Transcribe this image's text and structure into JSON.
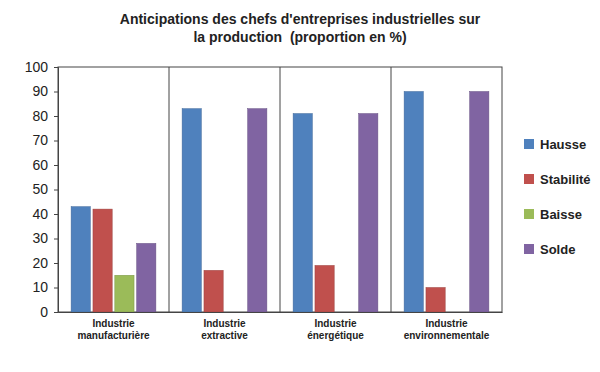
{
  "chart_data": {
    "type": "bar",
    "title": "Anticipations des chefs d'entreprises industrielles sur la production  (proportion en %)",
    "categories": [
      "Industrie manufacturière",
      "Industrie extractive",
      "Industrie énergétique",
      "Industrie environnementale"
    ],
    "series": [
      {
        "name": "Hausse",
        "color": "#4f81bd",
        "values": [
          43,
          83,
          81,
          90
        ]
      },
      {
        "name": "Stabilité",
        "color": "#c0504d",
        "values": [
          42,
          17,
          19,
          10
        ]
      },
      {
        "name": "Baisse",
        "color": "#9bbb59",
        "values": [
          15,
          0,
          0,
          0
        ]
      },
      {
        "name": "Solde",
        "color": "#8064a2",
        "values": [
          28,
          83,
          81,
          90
        ]
      }
    ],
    "ylim": [
      0,
      100
    ],
    "yticks": [
      0,
      10,
      20,
      30,
      40,
      50,
      60,
      70,
      80,
      90,
      100
    ],
    "grid": false,
    "legend": "right"
  }
}
